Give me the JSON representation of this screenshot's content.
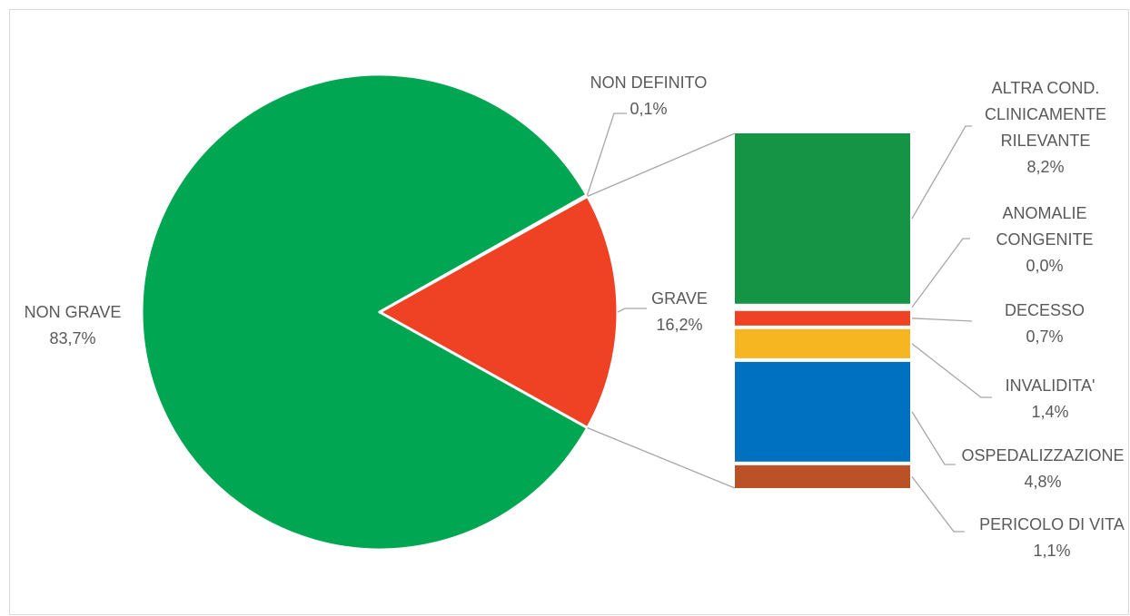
{
  "chart_data": {
    "type": "pie",
    "subtype": "bar-of-pie",
    "pie": {
      "slices": [
        {
          "label": "NON GRAVE",
          "value": 83.7,
          "value_label": "83,7%",
          "color": "#00a651"
        },
        {
          "label": "GRAVE",
          "value": 16.2,
          "value_label": "16,2%",
          "color": "#ef4123"
        },
        {
          "label": "NON DEFINITO",
          "value": 0.1,
          "value_label": "0,1%",
          "color": "#7f7f7f"
        }
      ]
    },
    "stacked_bar": {
      "breakdown_of": "GRAVE",
      "segments": [
        {
          "label_lines": [
            "ALTRA COND.",
            "CLINICAMENTE",
            "RILEVANTE"
          ],
          "value": 8.2,
          "value_label": "8,2%",
          "color": "#149444"
        },
        {
          "label_lines": [
            "ANOMALIE",
            "CONGENITE"
          ],
          "value": 0.0,
          "value_label": "0,0%",
          "color": "#7f7f7f"
        },
        {
          "label_lines": [
            "DECESSO"
          ],
          "value": 0.7,
          "value_label": "0,7%",
          "color": "#ef4123"
        },
        {
          "label_lines": [
            "INVALIDITA'"
          ],
          "value": 1.4,
          "value_label": "1,4%",
          "color": "#f5b622"
        },
        {
          "label_lines": [
            "OSPEDALIZZAZIONE"
          ],
          "value": 4.8,
          "value_label": "4,8%",
          "color": "#0070c0"
        },
        {
          "label_lines": [
            "PERICOLO DI VITA"
          ],
          "value": 1.1,
          "value_label": "1,1%",
          "color": "#bb5127"
        }
      ]
    },
    "legend": "none"
  }
}
